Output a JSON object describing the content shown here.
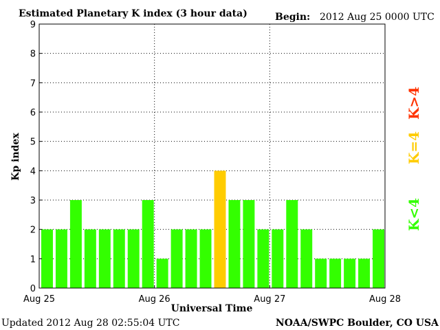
{
  "header": {
    "title": "Estimated Planetary K index (3 hour data)",
    "begin_label": "Begin:",
    "begin_value": "2012 Aug 25 0000 UTC"
  },
  "footer": {
    "updated": "Updated 2012 Aug 28 02:55:04 UTC",
    "credit": "NOAA/SWPC Boulder, CO USA"
  },
  "legend": {
    "items": [
      {
        "label": "K<4",
        "color": "#33ff00"
      },
      {
        "label": "K=4",
        "color": "#ffcc00"
      },
      {
        "label": "K>4",
        "color": "#ff3300"
      }
    ]
  },
  "chart_data": {
    "type": "bar",
    "xlabel": "Universal Time",
    "ylabel": "Kp index",
    "ylim": [
      0,
      9
    ],
    "yticks": [
      0,
      1,
      2,
      3,
      4,
      5,
      6,
      7,
      8,
      9
    ],
    "xtick_labels": [
      "Aug 25",
      "Aug 26",
      "Aug 27",
      "Aug 28"
    ],
    "grid": true,
    "values": [
      2,
      2,
      3,
      2,
      2,
      2,
      2,
      3,
      1,
      2,
      2,
      2,
      4,
      3,
      3,
      2,
      2,
      3,
      2,
      1,
      1,
      1,
      1,
      2
    ],
    "colors": {
      "below": "#33ff00",
      "equal": "#ffcc00",
      "above": "#ff3300"
    }
  }
}
